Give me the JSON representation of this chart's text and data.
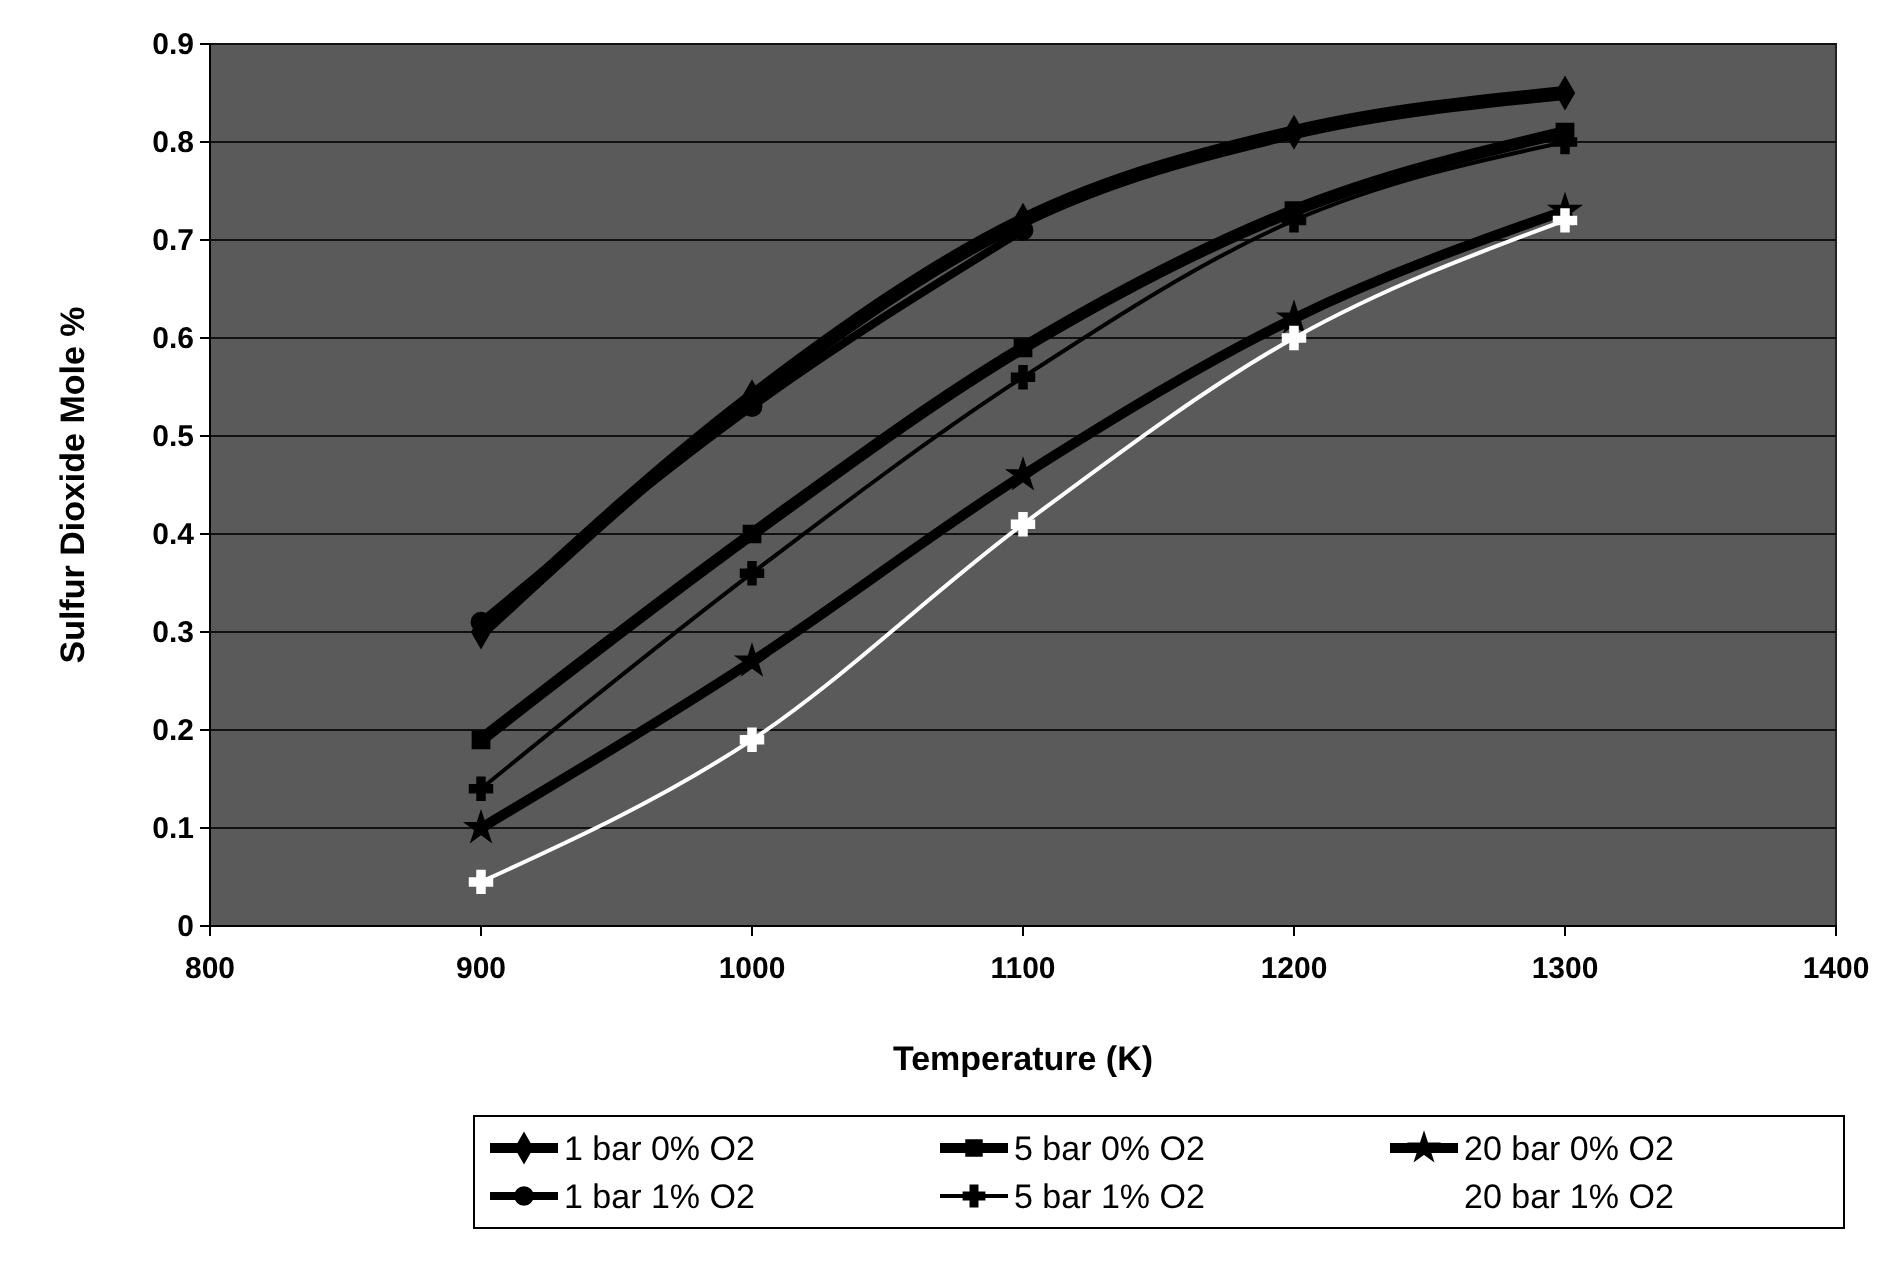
{
  "chart_data": {
    "type": "line",
    "xlabel": "Temperature (K)",
    "ylabel": "Sulfur Dioxide Mole %",
    "x": [
      900,
      1000,
      1100,
      1200,
      1300
    ],
    "xlim": [
      800,
      1400
    ],
    "xticks": [
      800,
      900,
      1000,
      1100,
      1200,
      1300,
      1400
    ],
    "ylim": [
      0,
      0.9
    ],
    "yticks": [
      0,
      0.1,
      0.2,
      0.3,
      0.4,
      0.5,
      0.6,
      0.7,
      0.8,
      0.9
    ],
    "grid": "y",
    "legend": "bottom",
    "series": [
      {
        "name": "1 bar 0% O2",
        "color": "#000000",
        "marker": "diamond",
        "values": [
          0.3,
          0.54,
          0.72,
          0.81,
          0.85
        ]
      },
      {
        "name": "5 bar 0% O2",
        "color": "#000000",
        "marker": "square",
        "values": [
          0.19,
          0.4,
          0.59,
          0.73,
          0.81
        ]
      },
      {
        "name": "20 bar 0% O2",
        "color": "#000000",
        "marker": "star",
        "values": [
          0.1,
          0.27,
          0.46,
          0.62,
          0.73
        ]
      },
      {
        "name": "1 bar 1% O2",
        "color": "#000000",
        "marker": "circle",
        "values": [
          0.31,
          0.53,
          0.71,
          null,
          null
        ]
      },
      {
        "name": "5 bar 1% O2",
        "color": "#000000",
        "marker": "cross",
        "values": [
          0.14,
          0.36,
          0.56,
          0.72,
          0.8
        ]
      },
      {
        "name": "20 bar 1% O2",
        "color": "#ffffff",
        "marker": "cross",
        "values": [
          0.045,
          0.19,
          0.41,
          0.6,
          0.72
        ]
      }
    ]
  }
}
